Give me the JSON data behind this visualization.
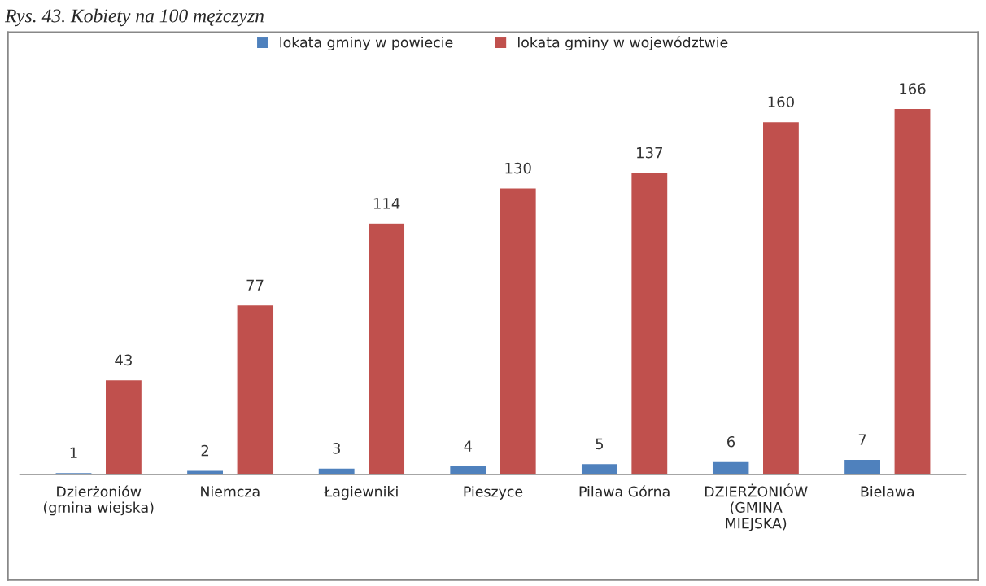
{
  "chart_data": {
    "type": "bar",
    "title": "Rys. 43. Kobiety na 100 mężczyzn",
    "categories": [
      "Dzierżoniów\n(gmina wiejska)",
      "Niemcza",
      "Łagiewniki",
      "Pieszyce",
      "Pilawa Górna",
      "DZIERŻONIÓW\n(GMINA\nMIEJSKA)",
      "Bielawa"
    ],
    "series": [
      {
        "name": "lokata gminy w powiecie",
        "color": "#4f81bd",
        "values": [
          1,
          2,
          3,
          4,
          5,
          6,
          7
        ]
      },
      {
        "name": "lokata gminy w województwie",
        "color": "#c0504d",
        "values": [
          43,
          77,
          114,
          130,
          137,
          160,
          166
        ]
      }
    ],
    "data_labels": true,
    "legend": "top",
    "grid": false
  }
}
